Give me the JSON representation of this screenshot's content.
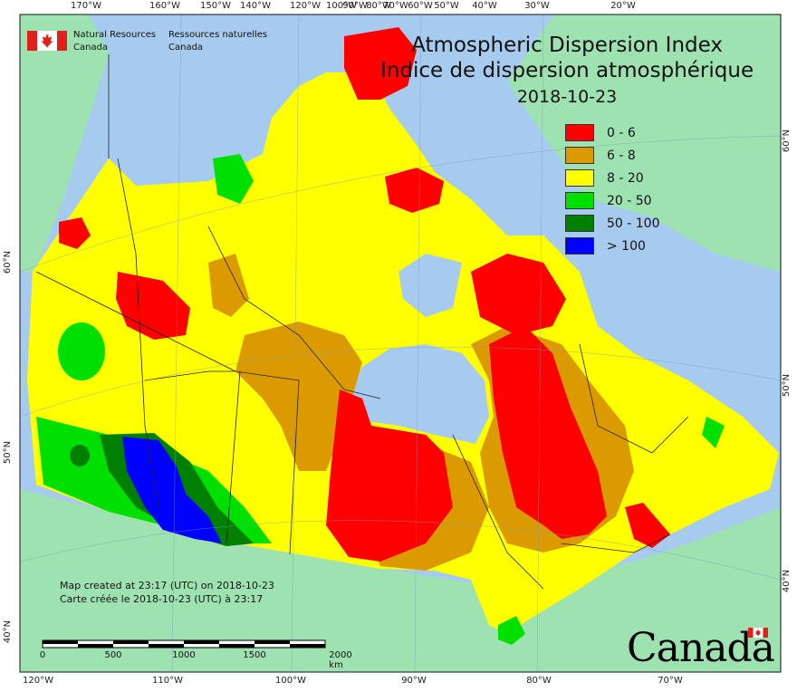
{
  "title": {
    "en": "Atmospheric Dispersion Index",
    "fr": "Indice de dispersion atmosphérique",
    "date": "2018-10-23"
  },
  "legend": [
    {
      "label": "0 - 6",
      "color": "#ff0000"
    },
    {
      "label": "6 - 8",
      "color": "#db9b00"
    },
    {
      "label": "8 - 20",
      "color": "#ffff00"
    },
    {
      "label": "20 - 50",
      "color": "#00e000"
    },
    {
      "label": "50 - 100",
      "color": "#008000"
    },
    {
      "label": "> 100",
      "color": "#0000ff"
    }
  ],
  "agency": {
    "en_line1": "Natural Resources",
    "en_line2": "Canada",
    "fr_line1": "Ressources naturelles",
    "fr_line2": "Canada"
  },
  "credit": {
    "en": "Map created at 23:17 (UTC) on 2018-10-23",
    "fr": "Carte créée le 2018-10-23 (UTC) à 23:17"
  },
  "scale": {
    "labels": [
      "0",
      "500",
      "1000",
      "1500",
      "2000 km"
    ]
  },
  "wordmark": "Canada",
  "graticule": {
    "top": [
      "170°W",
      "160°W",
      "150°W",
      "140°W",
      "120°W",
      "100°W",
      "90°W",
      "80°W",
      "70°W",
      "60°W",
      "50°W",
      "40°W",
      "30°W",
      "20°W"
    ],
    "bottom": [
      "120°W",
      "110°W",
      "100°W",
      "90°W",
      "80°W",
      "70°W"
    ],
    "left": [
      "60°N",
      "50°N",
      "40°N"
    ],
    "right": [
      "60°N",
      "50°N",
      "40°N"
    ]
  },
  "colors": {
    "ocean": "#a6cbee",
    "land_outside": "#9ee2b2",
    "border": "#222222"
  }
}
